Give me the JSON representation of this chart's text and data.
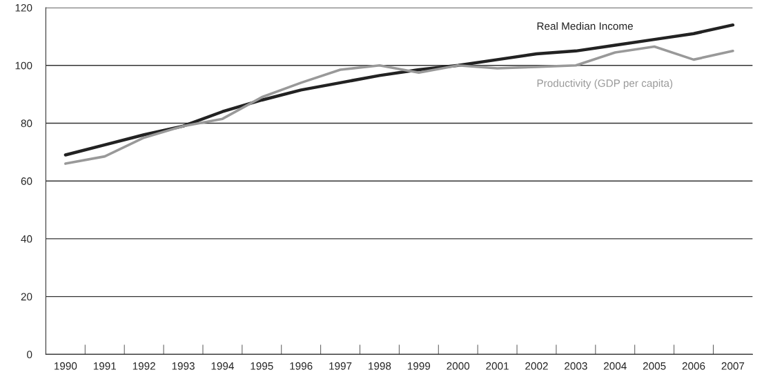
{
  "chart_data": {
    "type": "line",
    "categories": [
      "1990",
      "1991",
      "1992",
      "1993",
      "1994",
      "1995",
      "1996",
      "1997",
      "1998",
      "1999",
      "2000",
      "2001",
      "2002",
      "2003",
      "2004",
      "2005",
      "2006",
      "2007"
    ],
    "series": [
      {
        "name": "Real Median Income",
        "color": "#222222",
        "values": [
          69,
          72.5,
          76,
          79,
          84,
          88,
          91.5,
          94,
          96.5,
          98.5,
          100,
          102,
          104,
          105,
          107,
          109,
          111,
          114
        ]
      },
      {
        "name": "Productivity (GDP per capita)",
        "color": "#999999",
        "values": [
          66,
          68.5,
          75,
          79,
          81.5,
          89,
          94,
          98.5,
          100,
          97.5,
          100,
          99,
          99.5,
          100,
          104.5,
          106.5,
          102,
          105
        ]
      }
    ],
    "ylim": [
      0,
      120
    ],
    "yticks": [
      0,
      20,
      40,
      60,
      80,
      100,
      120
    ],
    "grid": "y",
    "legend": false
  }
}
